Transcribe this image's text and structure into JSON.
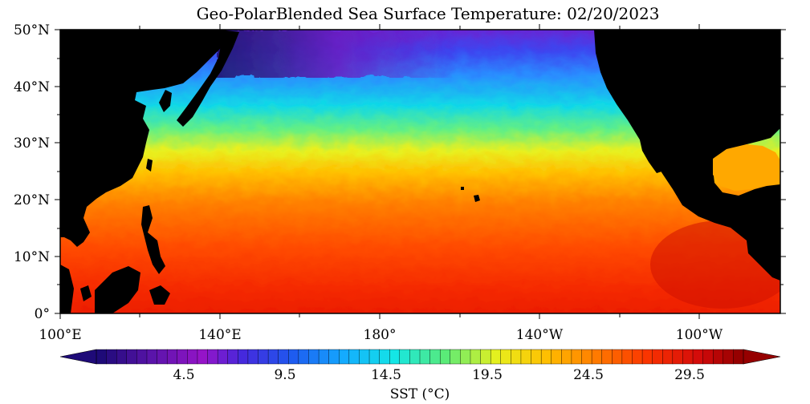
{
  "title": "Geo-PolarBlended Sea Surface Temperature: 02/20/2023",
  "lat_ticks": [
    "50°N",
    "40°N",
    "30°N",
    "20°N",
    "10°N",
    "0°"
  ],
  "lon_ticks": [
    "100°E",
    "140°E",
    "180°",
    "140°W",
    "100°W"
  ],
  "colorbar": {
    "tick_labels": [
      "4.5",
      "9.5",
      "14.5",
      "19.5",
      "24.5",
      "29.5"
    ],
    "label": "SST (°C)"
  },
  "colors": {
    "land": "#000000",
    "cold": "#1a0a78",
    "warm": "#b00000"
  }
}
